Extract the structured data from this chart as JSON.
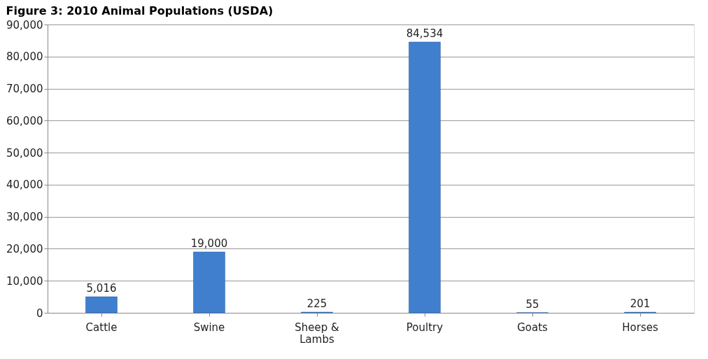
{
  "chart_data": {
    "type": "bar",
    "title": "Figure 3: 2010 Animal Populations (USDA)",
    "categories": [
      "Cattle",
      "Swine",
      "Sheep & Lambs",
      "Poultry",
      "Goats",
      "Horses"
    ],
    "values": [
      5016,
      19000,
      225,
      84534,
      55,
      201
    ],
    "value_labels": [
      "5,016",
      "19,000",
      "225",
      "84,534",
      "55",
      "201"
    ],
    "color": "#3f7fce",
    "ylim": [
      0,
      90000
    ],
    "yticks": [
      0,
      {
        "value": 10000,
        "label": "10,000"
      },
      {
        "value": 20000,
        "label": "20,000"
      },
      {
        "value": 30000,
        "label": "30,000"
      },
      {
        "value": 40000,
        "label": "40,000"
      },
      {
        "value": 50000,
        "label": "50,000"
      },
      {
        "value": 60000,
        "label": "60,000"
      },
      {
        "value": 70000,
        "label": "70,000"
      },
      {
        "value": 80000,
        "label": "80,000"
      },
      {
        "value": 90000,
        "label": "90,000"
      }
    ],
    "grid": "y"
  }
}
